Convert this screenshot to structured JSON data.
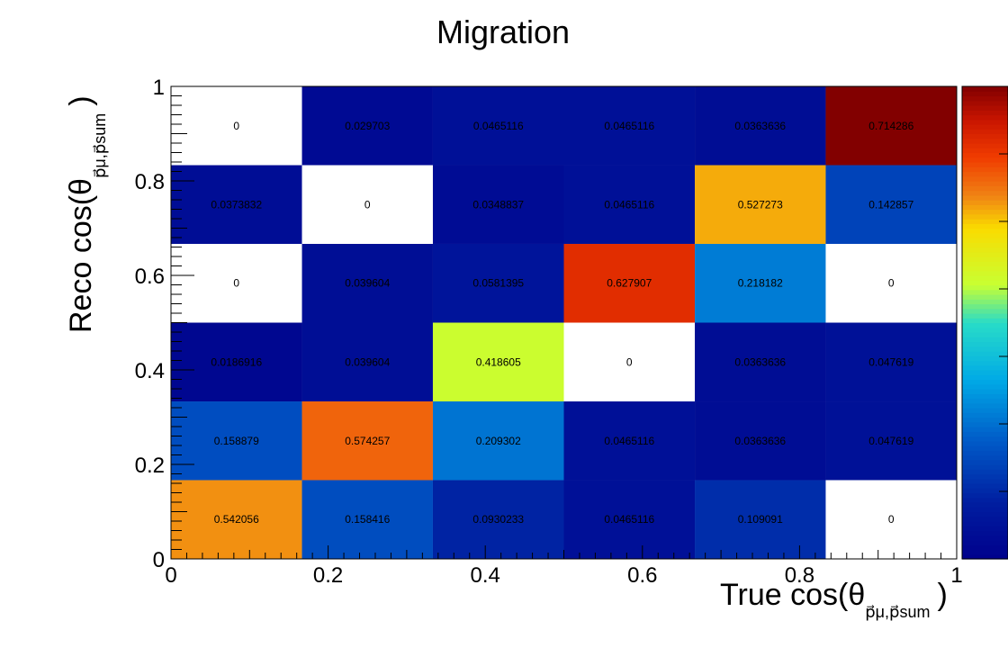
{
  "chart_data": {
    "type": "heatmap",
    "title": "Migration",
    "xlabel": "True cos(θ",
    "xlabel_sub": "p⃗μ,p⃗sum",
    "xlabel_close": ")",
    "ylabel": "Reco cos(θ",
    "ylabel_sub": "p⃗μ,p⃗sum",
    "ylabel_close": ")",
    "x_bins": [
      0,
      0.1667,
      0.3333,
      0.5,
      0.6667,
      0.8333,
      1
    ],
    "y_bins": [
      0,
      0.1667,
      0.3333,
      0.5,
      0.6667,
      0.8333,
      1
    ],
    "xlim": [
      0,
      1
    ],
    "ylim": [
      0,
      1
    ],
    "x_tick_labels": [
      "0",
      "0.2",
      "0.4",
      "0.6",
      "0.8",
      "1"
    ],
    "y_tick_labels": [
      "0",
      "0.2",
      "0.4",
      "0.6",
      "0.8",
      "1"
    ],
    "z_range": [
      0,
      0.714286
    ],
    "colorscale": "rainbow",
    "rows_bottom_to_top": [
      [
        "0.542056",
        "0.158416",
        "0.0930233",
        "0.0465116",
        "0.109091",
        "0"
      ],
      [
        "0.158879",
        "0.574257",
        "0.209302",
        "0.0465116",
        "0.0363636",
        "0.047619"
      ],
      [
        "0.0186916",
        "0.039604",
        "0.418605",
        "0",
        "0.0363636",
        "0.047619"
      ],
      [
        "0",
        "0.039604",
        "0.0581395",
        "0.627907",
        "0.218182",
        "0"
      ],
      [
        "0.0373832",
        "0",
        "0.0348837",
        "0.0465116",
        "0.527273",
        "0.142857"
      ],
      [
        "0",
        "0.029703",
        "0.0465116",
        "0.0465116",
        "0.0363636",
        "0.714286"
      ]
    ]
  }
}
